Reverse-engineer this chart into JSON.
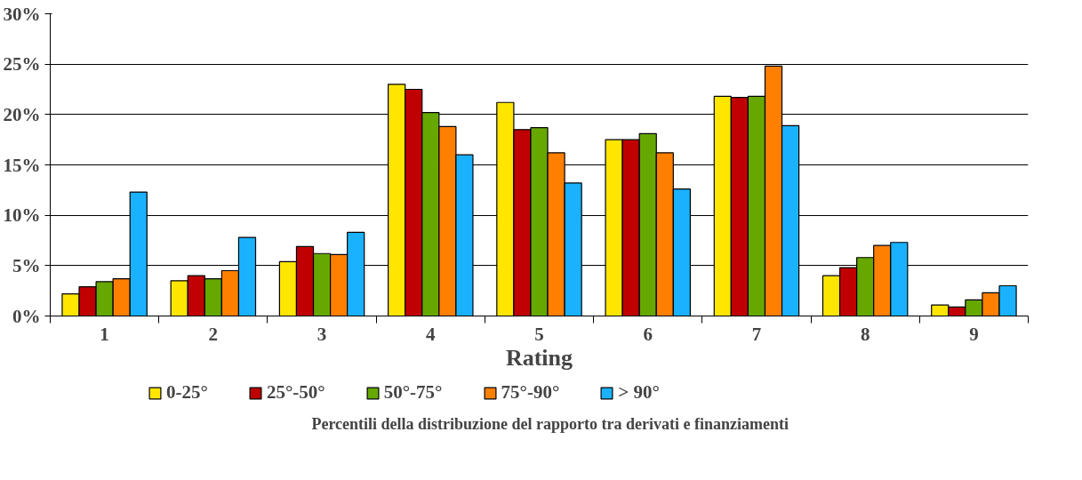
{
  "chart_data": {
    "type": "bar",
    "xlabel": "Rating",
    "legend_title": "Percentili della distribuzione del rapporto tra derivati e  finanziamenti",
    "categories": [
      "1",
      "2",
      "3",
      "4",
      "5",
      "6",
      "7",
      "8",
      "9"
    ],
    "series": [
      {
        "name": "0-25°",
        "color": "#ffe600",
        "values": [
          2.2,
          3.5,
          5.4,
          23.0,
          21.2,
          17.5,
          21.8,
          4.0,
          1.1
        ]
      },
      {
        "name": "25°-50°",
        "color": "#c00000",
        "values": [
          2.9,
          4.0,
          6.9,
          22.5,
          18.5,
          17.5,
          21.7,
          4.8,
          0.9
        ]
      },
      {
        "name": "50°-75°",
        "color": "#66a800",
        "values": [
          3.4,
          3.7,
          6.2,
          20.2,
          18.7,
          18.1,
          21.8,
          5.8,
          1.6
        ]
      },
      {
        "name": "75°-90°",
        "color": "#ff7f00",
        "values": [
          3.7,
          4.5,
          6.1,
          18.8,
          16.2,
          16.2,
          24.8,
          7.0,
          2.3
        ]
      },
      {
        "name": "> 90°",
        "color": "#1ab2ff",
        "values": [
          12.3,
          7.8,
          8.3,
          16.0,
          13.2,
          12.6,
          18.9,
          7.3,
          3.0
        ]
      }
    ],
    "ylim": [
      0,
      30
    ],
    "yticks": [
      {
        "value": 0,
        "label": "0%"
      },
      {
        "value": 5,
        "label": "5%"
      },
      {
        "value": 10,
        "label": "10%"
      },
      {
        "value": 15,
        "label": "15%"
      },
      {
        "value": 20,
        "label": "20%"
      },
      {
        "value": 25,
        "label": "25%"
      },
      {
        "value": 30,
        "label": "30%"
      }
    ],
    "grid": "y",
    "legend": "bottom"
  }
}
